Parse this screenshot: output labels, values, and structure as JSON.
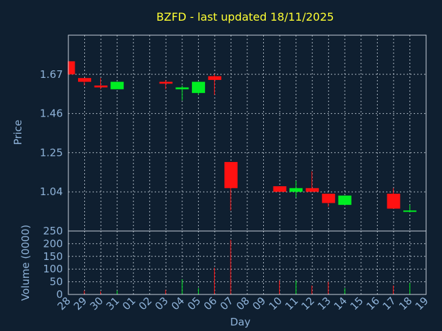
{
  "chart_data": {
    "type": "candlestick",
    "title": "BZFD - last updated 18/11/2025",
    "xlabel": "Day",
    "ylabel": "Price",
    "volume_label": "Volume (0000)",
    "x_ticks": [
      "28",
      "29",
      "30",
      "31",
      "01",
      "02",
      "03",
      "04",
      "05",
      "06",
      "07",
      "08",
      "09",
      "10",
      "11",
      "12",
      "13",
      "14",
      "15",
      "16",
      "17",
      "18",
      "19"
    ],
    "price_ticks": [
      "1.67",
      "1.46",
      "1.25",
      "1.04"
    ],
    "price_tick_values": [
      1.67,
      1.46,
      1.25,
      1.04
    ],
    "volume_ticks": [
      "250",
      "200",
      "150",
      "100",
      "50",
      "0"
    ],
    "volume_tick_values": [
      250,
      200,
      150,
      100,
      50,
      0
    ],
    "price_range": [
      0.83,
      1.88
    ],
    "volume_range": [
      0,
      250
    ],
    "grid": true,
    "colors": {
      "up": "#00ee22",
      "down": "#ff1111",
      "background": "#0f1f30",
      "text": "#8fb3d9",
      "title": "#ffff33"
    },
    "candles": [
      {
        "i": 0,
        "open": 1.74,
        "close": 1.67,
        "high": 1.74,
        "low": 1.67,
        "volume": 0
      },
      {
        "i": 1,
        "open": 1.65,
        "close": 1.63,
        "high": 1.65,
        "low": 1.61,
        "volume": 15
      },
      {
        "i": 2,
        "open": 1.61,
        "close": 1.6,
        "high": 1.65,
        "low": 1.59,
        "volume": 12
      },
      {
        "i": 3,
        "open": 1.59,
        "close": 1.63,
        "high": 1.63,
        "low": 1.59,
        "volume": 15
      },
      {
        "i": 6,
        "open": 1.63,
        "close": 1.62,
        "high": 1.64,
        "low": 1.59,
        "volume": 18
      },
      {
        "i": 7,
        "open": 1.59,
        "close": 1.6,
        "high": 1.61,
        "low": 1.53,
        "volume": 60
      },
      {
        "i": 8,
        "open": 1.57,
        "close": 1.63,
        "high": 1.63,
        "low": 1.56,
        "volume": 25
      },
      {
        "i": 9,
        "open": 1.66,
        "close": 1.64,
        "high": 1.67,
        "low": 1.56,
        "volume": 105
      },
      {
        "i": 10,
        "open": 1.2,
        "close": 1.06,
        "high": 1.2,
        "low": 0.94,
        "volume": 215
      },
      {
        "i": 13,
        "open": 1.07,
        "close": 1.04,
        "high": 1.07,
        "low": 1.04,
        "volume": 55
      },
      {
        "i": 14,
        "open": 1.04,
        "close": 1.06,
        "high": 1.1,
        "low": 1.01,
        "volume": 55
      },
      {
        "i": 15,
        "open": 1.06,
        "close": 1.04,
        "high": 1.15,
        "low": 1.04,
        "volume": 35
      },
      {
        "i": 16,
        "open": 1.03,
        "close": 0.98,
        "high": 1.03,
        "low": 0.96,
        "volume": 50
      },
      {
        "i": 17,
        "open": 0.97,
        "close": 1.02,
        "high": 1.02,
        "low": 0.97,
        "volume": 25
      },
      {
        "i": 20,
        "open": 1.03,
        "close": 0.95,
        "high": 1.06,
        "low": 0.95,
        "volume": 35
      },
      {
        "i": 21,
        "open": 0.94,
        "close": 0.94,
        "high": 0.97,
        "low": 0.93,
        "volume": 45
      }
    ]
  }
}
